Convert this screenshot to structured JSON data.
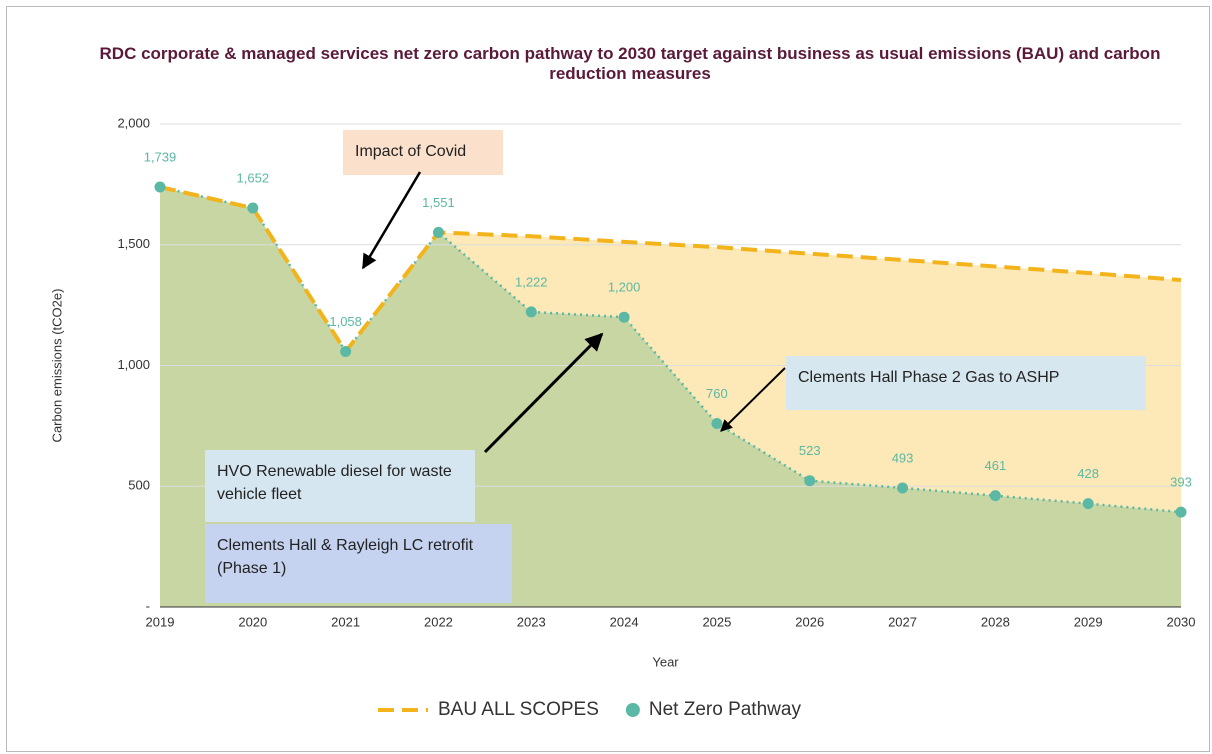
{
  "chart_data": {
    "type": "line",
    "title": "RDC corporate & managed services net zero carbon pathway to 2030 target against business as usual emissions (BAU) and carbon reduction measures",
    "x_label": "Year",
    "y_label": "Carbon emissions (tCO2e)",
    "categories": [
      "2019",
      "2020",
      "2021",
      "2022",
      "2023",
      "2024",
      "2025",
      "2026",
      "2027",
      "2028",
      "2029",
      "2030"
    ],
    "series": [
      {
        "name": "BAU ALL SCOPES",
        "color": "#f2b31b",
        "fill": "#fde9b8",
        "dash": "dashed",
        "values": [
          1739,
          1652,
          1058,
          1551,
          1535,
          1512,
          1490,
          1463,
          1437,
          1410,
          1383,
          1354
        ]
      },
      {
        "name": "Net Zero Pathway",
        "color": "#5bb8a4",
        "fill": "#c8d6a3",
        "dash": "dotted",
        "markers": true,
        "values": [
          1739,
          1652,
          1058,
          1551,
          1222,
          1200,
          760,
          523,
          493,
          461,
          428,
          393
        ],
        "value_labels": [
          "1,739",
          "1,652",
          "1,058",
          "1,551",
          "1,222",
          "1,200",
          "760",
          "523",
          "493",
          "461",
          "428",
          "393"
        ]
      }
    ],
    "ylim": [
      0,
      2000
    ],
    "yticks": [
      {
        "value": 0,
        "label": "-"
      },
      500,
      {
        "value": 1000,
        "label": "1,000"
      },
      {
        "value": 1500,
        "label": "1,500"
      },
      {
        "value": 2000,
        "label": "2,000"
      }
    ],
    "grid": true,
    "legend": "bottom",
    "annotations": [
      {
        "text": "Impact of Covid"
      },
      {
        "text": "HVO Renewable diesel for waste vehicle fleet"
      },
      {
        "text": "Clements Hall & Rayleigh LC retrofit (Phase 1)"
      },
      {
        "text": "Clements Hall Phase 2 Gas to ASHP"
      }
    ]
  }
}
